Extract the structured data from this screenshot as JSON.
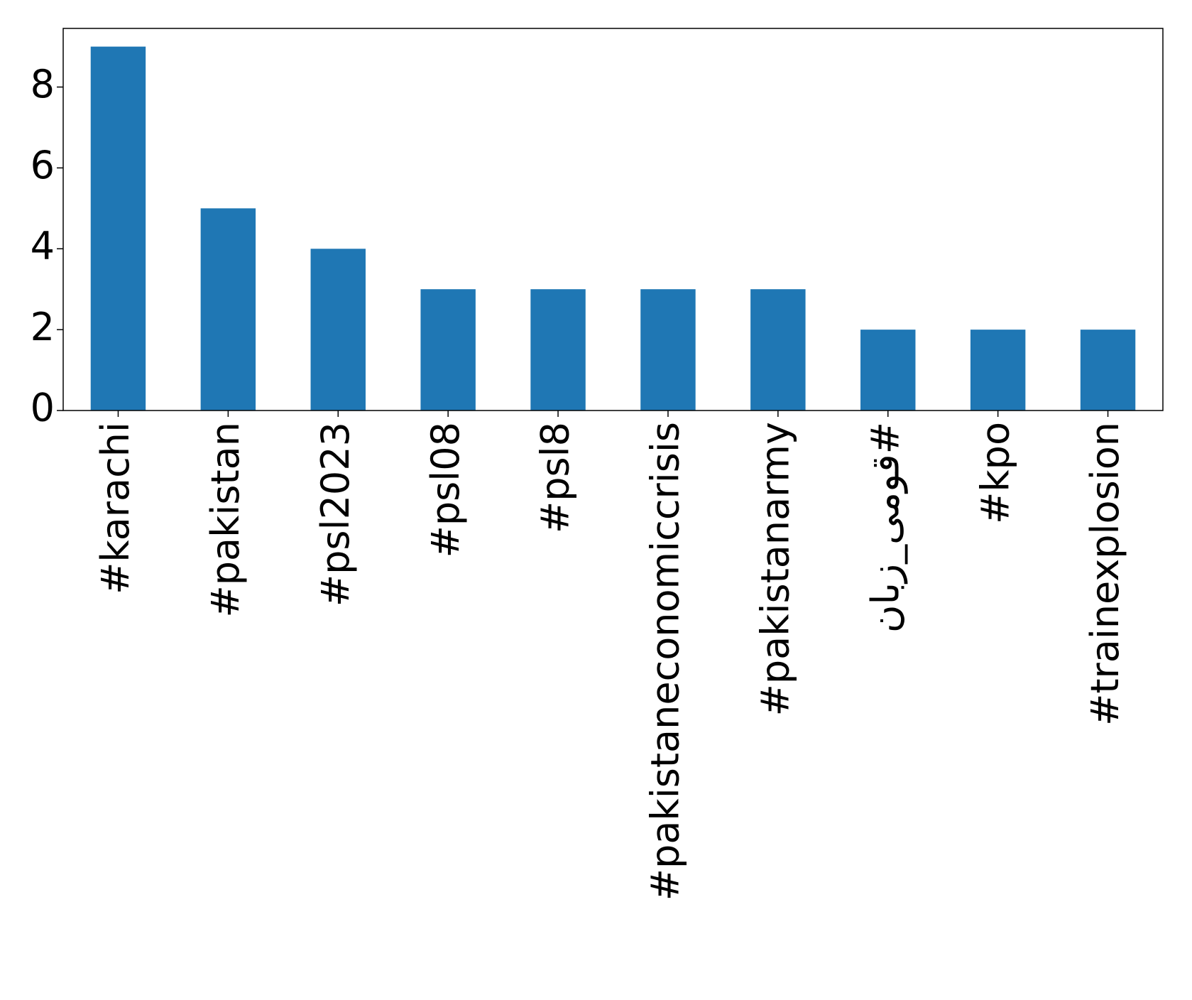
{
  "chart_data": {
    "type": "bar",
    "categories": [
      "#karachi",
      "#pakistan",
      "#psl2023",
      "#psl08",
      "#psl8",
      "#pakistaneconomiccrisis",
      "#pakistanarmy",
      "#قومی_زبان",
      "#kpo",
      "#trainexplosion"
    ],
    "values": [
      9,
      5,
      4,
      3,
      3,
      3,
      3,
      2,
      2,
      2
    ],
    "color": "#1f77b4",
    "ylim": [
      0,
      9.45
    ],
    "yticks": [
      0,
      2,
      4,
      6,
      8
    ],
    "grid": false
  }
}
